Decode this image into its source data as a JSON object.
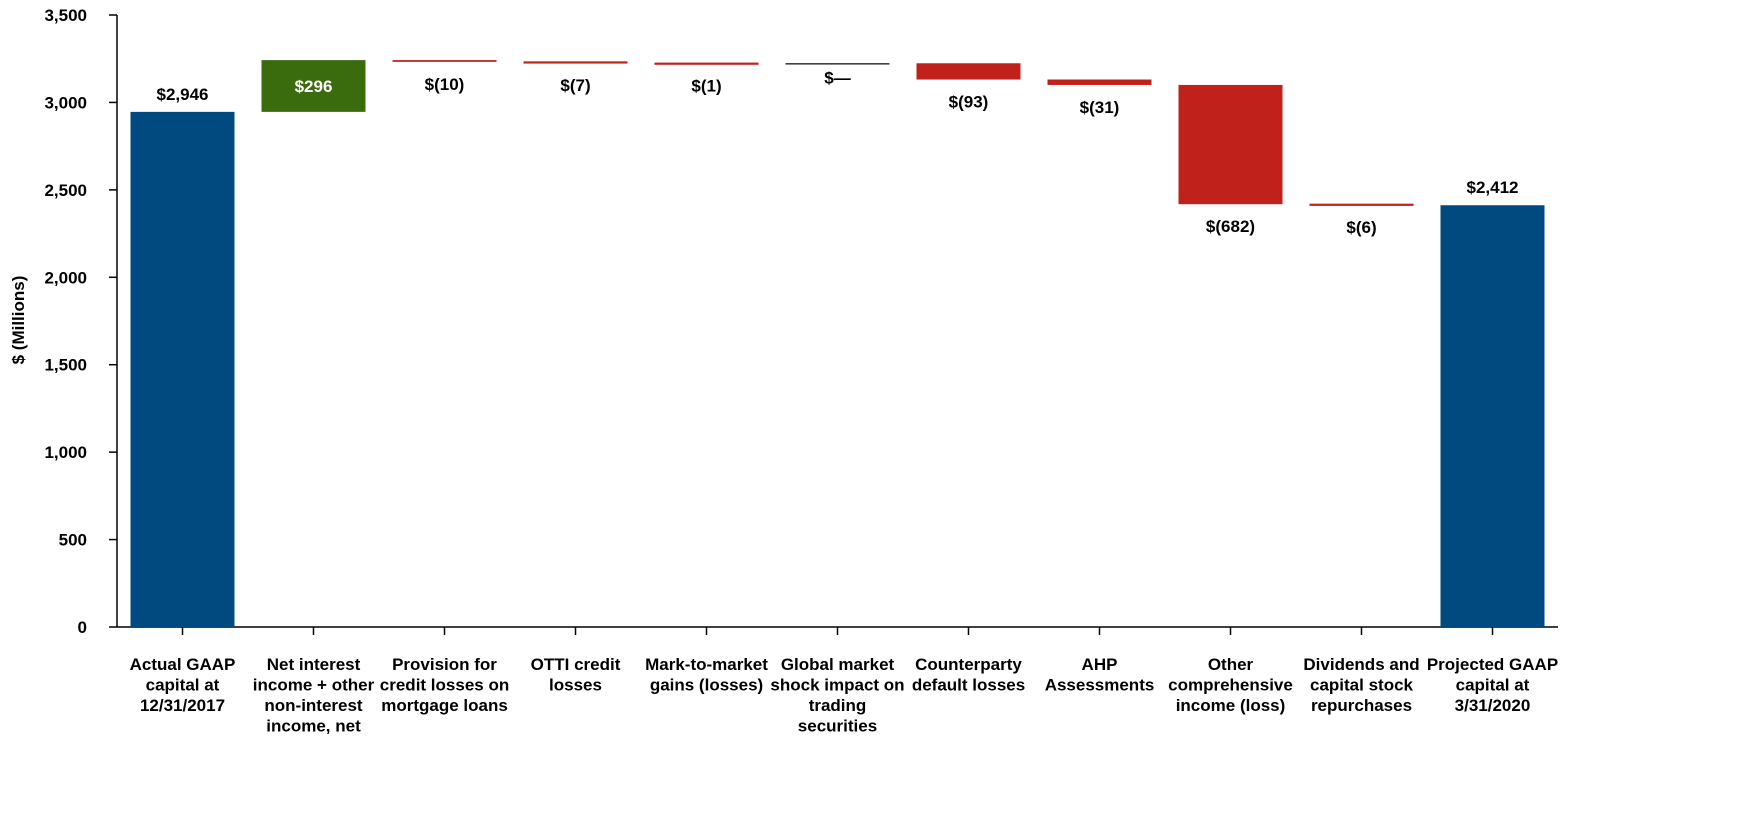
{
  "chart_data": {
    "type": "bar",
    "subtype": "waterfall",
    "ylabel": "$ (Millions)",
    "ylim": [
      0,
      3500
    ],
    "yticks": [
      0,
      500,
      1000,
      1500,
      2000,
      2500,
      3000,
      3500
    ],
    "ytick_labels": [
      "0",
      "500",
      "1,000",
      "1,500",
      "2,000",
      "2,500",
      "3,000",
      "3,500"
    ],
    "grid": false,
    "legend": "none",
    "colors": {
      "total": "#004a80",
      "increase": "#3a6b0c",
      "decrease": "#c0211a",
      "zero": "#000000"
    },
    "categories": [
      "Actual GAAP capital at 12/31/2017",
      "Net interest income + other non-interest income, net",
      "Provision for credit losses on mortgage loans",
      "OTTI credit losses",
      "Mark-to-market gains (losses)",
      "Global market shock impact on trading securities",
      "Counterparty default losses",
      "AHP Assessments",
      "Other comprehensive income (loss)",
      "Dividends and capital stock repurchases",
      "Projected GAAP capital at 3/31/2020"
    ],
    "category_lines": [
      [
        "Actual GAAP",
        "capital at",
        "12/31/2017"
      ],
      [
        "Net interest",
        "income + other",
        "non-interest",
        "income, net"
      ],
      [
        "Provision for",
        "credit losses on",
        "mortgage loans"
      ],
      [
        "OTTI credit",
        "losses"
      ],
      [
        "Mark-to-market",
        "gains (losses)"
      ],
      [
        "Global market",
        "shock impact on",
        "trading",
        "securities"
      ],
      [
        "Counterparty",
        "default losses"
      ],
      [
        "AHP",
        "Assessments"
      ],
      [
        "Other",
        "comprehensive",
        "income (loss)"
      ],
      [
        "Dividends and",
        "capital stock",
        "repurchases"
      ],
      [
        "Projected GAAP",
        "capital at",
        "3/31/2020"
      ]
    ],
    "bars": [
      {
        "kind": "total",
        "start": 0,
        "end": 2946,
        "label": "$2,946"
      },
      {
        "kind": "increase",
        "start": 2946,
        "end": 3242,
        "label": "$296"
      },
      {
        "kind": "decrease",
        "start": 3242,
        "end": 3232,
        "label": "$(10)"
      },
      {
        "kind": "decrease",
        "start": 3232,
        "end": 3225,
        "label": "$(7)"
      },
      {
        "kind": "decrease",
        "start": 3225,
        "end": 3224,
        "label": "$(1)"
      },
      {
        "kind": "zero",
        "start": 3224,
        "end": 3224,
        "label": "$—"
      },
      {
        "kind": "decrease",
        "start": 3224,
        "end": 3131,
        "label": "$(93)"
      },
      {
        "kind": "decrease",
        "start": 3131,
        "end": 3100,
        "label": "$(31)"
      },
      {
        "kind": "decrease",
        "start": 3100,
        "end": 2418,
        "label": "$(682)"
      },
      {
        "kind": "decrease",
        "start": 2418,
        "end": 2412,
        "label": "$(6)"
      },
      {
        "kind": "total",
        "start": 0,
        "end": 2412,
        "label": "$2,412"
      }
    ]
  }
}
